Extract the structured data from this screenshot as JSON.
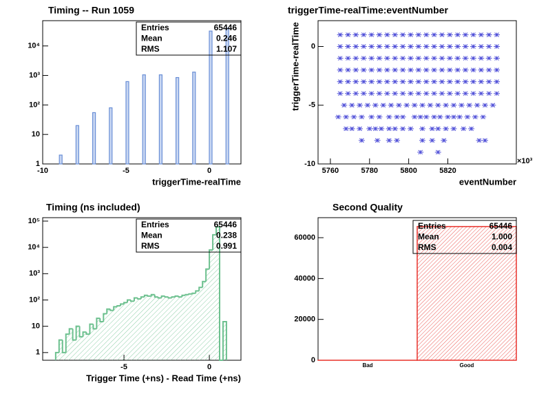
{
  "chart_data": [
    {
      "type": "bar",
      "title": "Timing -- Run 1059",
      "xlabel": "triggerTime-realTime",
      "x": [
        -9,
        -8,
        -7,
        -6,
        -5,
        -4,
        -3,
        -2,
        -1,
        0,
        1
      ],
      "values": [
        2,
        20,
        55,
        80,
        620,
        1050,
        1050,
        850,
        1300,
        32000,
        40000
      ],
      "color": "#6a8fd6",
      "logy": true,
      "xlim": [
        -10,
        1.9
      ],
      "xticks": [
        -10,
        -5,
        0
      ],
      "ylim": [
        1,
        72000
      ],
      "yticks": [
        1,
        10,
        {
          "value": 100,
          "label": "10²"
        },
        {
          "value": 1000,
          "label": "10³"
        },
        {
          "value": 10000,
          "label": "10⁴"
        }
      ],
      "stats": [
        [
          "Entries",
          "65446"
        ],
        [
          "Mean",
          "0.246"
        ],
        [
          "RMS",
          "1.107"
        ]
      ]
    },
    {
      "type": "scatter",
      "title": "triggerTime-realTime:eventNumber",
      "xlabel": "eventNumber",
      "ylabel": "triggerTime-realTime",
      "x_multiplier": "×10³",
      "color": "#5050d8",
      "xlim": [
        5753.7,
        5855
      ],
      "xticks": [
        5760,
        5780,
        5800,
        5820
      ],
      "ylim": [
        -10,
        2.2
      ],
      "yticks": [
        -10,
        -5,
        0
      ],
      "series": [
        {
          "x": [
            5765,
            5769,
            5773,
            5777,
            5781,
            5785,
            5789,
            5793,
            5797,
            5801,
            5805,
            5809,
            5813,
            5817,
            5821,
            5825,
            5829,
            5833,
            5837,
            5841,
            5845
          ],
          "values": [
            1,
            1,
            1,
            1,
            1,
            1,
            1,
            1,
            1,
            1,
            1,
            1,
            1,
            1,
            1,
            1,
            1,
            1,
            1,
            1,
            1
          ]
        },
        {
          "x": [
            5765,
            5769,
            5773,
            5777,
            5781,
            5785,
            5789,
            5793,
            5797,
            5801,
            5805,
            5809,
            5813,
            5817,
            5821,
            5825,
            5829,
            5833,
            5837,
            5841,
            5845
          ],
          "values": [
            0,
            0,
            0,
            0,
            0,
            0,
            0,
            0,
            0,
            0,
            0,
            0,
            0,
            0,
            0,
            0,
            0,
            0,
            0,
            0,
            0
          ]
        },
        {
          "x": [
            5765,
            5769,
            5773,
            5777,
            5781,
            5785,
            5789,
            5793,
            5797,
            5801,
            5805,
            5809,
            5813,
            5817,
            5821,
            5825,
            5829,
            5833,
            5837,
            5841,
            5845
          ],
          "values": [
            -1,
            -1,
            -1,
            -1,
            -1,
            -1,
            -1,
            -1,
            -1,
            -1,
            -1,
            -1,
            -1,
            -1,
            -1,
            -1,
            -1,
            -1,
            -1,
            -1,
            -1
          ]
        },
        {
          "x": [
            5765,
            5769,
            5773,
            5777,
            5781,
            5785,
            5789,
            5793,
            5797,
            5801,
            5805,
            5809,
            5813,
            5817,
            5821,
            5825,
            5829,
            5833,
            5837,
            5841,
            5845
          ],
          "values": [
            -2,
            -2,
            -2,
            -2,
            -2,
            -2,
            -2,
            -2,
            -2,
            -2,
            -2,
            -2,
            -2,
            -2,
            -2,
            -2,
            -2,
            -2,
            -2,
            -2,
            -2
          ]
        },
        {
          "x": [
            5765,
            5769,
            5773,
            5777,
            5781,
            5785,
            5789,
            5793,
            5797,
            5801,
            5805,
            5809,
            5813,
            5817,
            5821,
            5825,
            5829,
            5833,
            5837,
            5841,
            5845
          ],
          "values": [
            -3,
            -3,
            -3,
            -3,
            -3,
            -3,
            -3,
            -3,
            -3,
            -3,
            -3,
            -3,
            -3,
            -3,
            -3,
            -3,
            -3,
            -3,
            -3,
            -3,
            -3
          ]
        },
        {
          "x": [
            5765,
            5769,
            5773,
            5777,
            5781,
            5785,
            5789,
            5793,
            5797,
            5801,
            5805,
            5809,
            5813,
            5817,
            5821,
            5825,
            5829,
            5833,
            5837,
            5841,
            5845
          ],
          "values": [
            -4,
            -4,
            -4,
            -4,
            -4,
            -4,
            -4,
            -4,
            -4,
            -4,
            -4,
            -4,
            -4,
            -4,
            -4,
            -4,
            -4,
            -4,
            -4,
            -4,
            -4
          ]
        },
        {
          "x": [
            5767,
            5771,
            5775,
            5779,
            5783,
            5787,
            5791,
            5795,
            5799,
            5803,
            5807,
            5811,
            5815,
            5819,
            5823,
            5827,
            5831,
            5835,
            5839,
            5843
          ],
          "values": [
            -5,
            -5,
            -5,
            -5,
            -5,
            -5,
            -5,
            -5,
            -5,
            -5,
            -5,
            -5,
            -5,
            -5,
            -5,
            -5,
            -5,
            -5,
            -5,
            -5
          ]
        },
        {
          "x": [
            5764,
            5768,
            5772,
            5776,
            5781,
            5785,
            5790,
            5794,
            5797,
            5803,
            5806,
            5809,
            5813,
            5816,
            5820,
            5823,
            5826,
            5830,
            5834,
            5838
          ],
          "values": [
            -6,
            -6,
            -6,
            -6,
            -6,
            -6,
            -6,
            -6,
            -6,
            -6,
            -6,
            -6,
            -6,
            -6,
            -6,
            -6,
            -6,
            -6,
            -6,
            -6
          ]
        },
        {
          "x": [
            5768,
            5771,
            5775,
            5780,
            5783,
            5786,
            5790,
            5793,
            5797,
            5801,
            5807,
            5812,
            5815,
            5819,
            5823,
            5828,
            5832
          ],
          "values": [
            -7,
            -7,
            -7,
            -7,
            -7,
            -7,
            -7,
            -7,
            -7,
            -7,
            -7,
            -7,
            -7,
            -7,
            -7,
            -7,
            -7
          ]
        },
        {
          "x": [
            5776,
            5784,
            5790,
            5794,
            5807,
            5812,
            5818,
            5836,
            5839
          ],
          "values": [
            -8,
            -8,
            -8,
            -8,
            -8,
            -8,
            -8,
            -8,
            -8
          ]
        },
        {
          "x": [
            5806,
            5815
          ],
          "values": [
            -9,
            -9
          ]
        }
      ]
    },
    {
      "type": "histogram",
      "title": "Timing (ns included)",
      "xlabel": "Trigger Time (+ns) - Read Time (+ns)",
      "bins": [
        -9,
        -8.8,
        -8.6,
        -8.4,
        -8.2,
        -8,
        -7.8,
        -7.6,
        -7.4,
        -7.2,
        -7,
        -6.8,
        -6.6,
        -6.4,
        -6.2,
        -6,
        -5.8,
        -5.6,
        -5.4,
        -5.2,
        -5,
        -4.8,
        -4.6,
        -4.4,
        -4.2,
        -4,
        -3.8,
        -3.6,
        -3.4,
        -3.2,
        -3,
        -2.8,
        -2.6,
        -2.4,
        -2.2,
        -2,
        -1.8,
        -1.6,
        -1.4,
        -1.2,
        -1,
        -0.8,
        -0.6,
        -0.4,
        -0.2,
        0,
        0.2,
        0.4,
        0.6,
        0.8,
        1
      ],
      "values": [
        1,
        3,
        1,
        5,
        8,
        3,
        10,
        4,
        6,
        5,
        12,
        8,
        20,
        15,
        30,
        45,
        40,
        55,
        60,
        70,
        80,
        100,
        90,
        120,
        110,
        130,
        150,
        140,
        160,
        130,
        120,
        140,
        130,
        120,
        130,
        140,
        130,
        150,
        160,
        170,
        180,
        220,
        300,
        500,
        1500,
        8000,
        30000,
        60000,
        0,
        15
      ],
      "color": "#6cc08e",
      "logy": true,
      "xlim": [
        -9.76,
        1.85
      ],
      "xticks": [
        -5,
        0
      ],
      "ylim": [
        0.51,
        135000
      ],
      "yticks": [
        1,
        10,
        {
          "value": 100,
          "label": "10²"
        },
        {
          "value": 1000,
          "label": "10³"
        },
        {
          "value": 10000,
          "label": "10⁴"
        },
        {
          "value": 100000,
          "label": "10⁵"
        }
      ],
      "stats": [
        [
          "Entries",
          "65446"
        ],
        [
          "Mean",
          "0.238"
        ],
        [
          "RMS",
          "0.991"
        ]
      ]
    },
    {
      "type": "bar",
      "title": "Second Quality",
      "categories": [
        "Bad",
        "Good"
      ],
      "values": [
        0,
        65446
      ],
      "color": "#e8302a",
      "ylim": [
        0,
        69800
      ],
      "yticks": [
        0,
        20000,
        40000,
        60000
      ],
      "stats": [
        [
          "Entries",
          "65446"
        ],
        [
          "Mean",
          "1.000"
        ],
        [
          "RMS",
          "0.004"
        ]
      ]
    }
  ]
}
